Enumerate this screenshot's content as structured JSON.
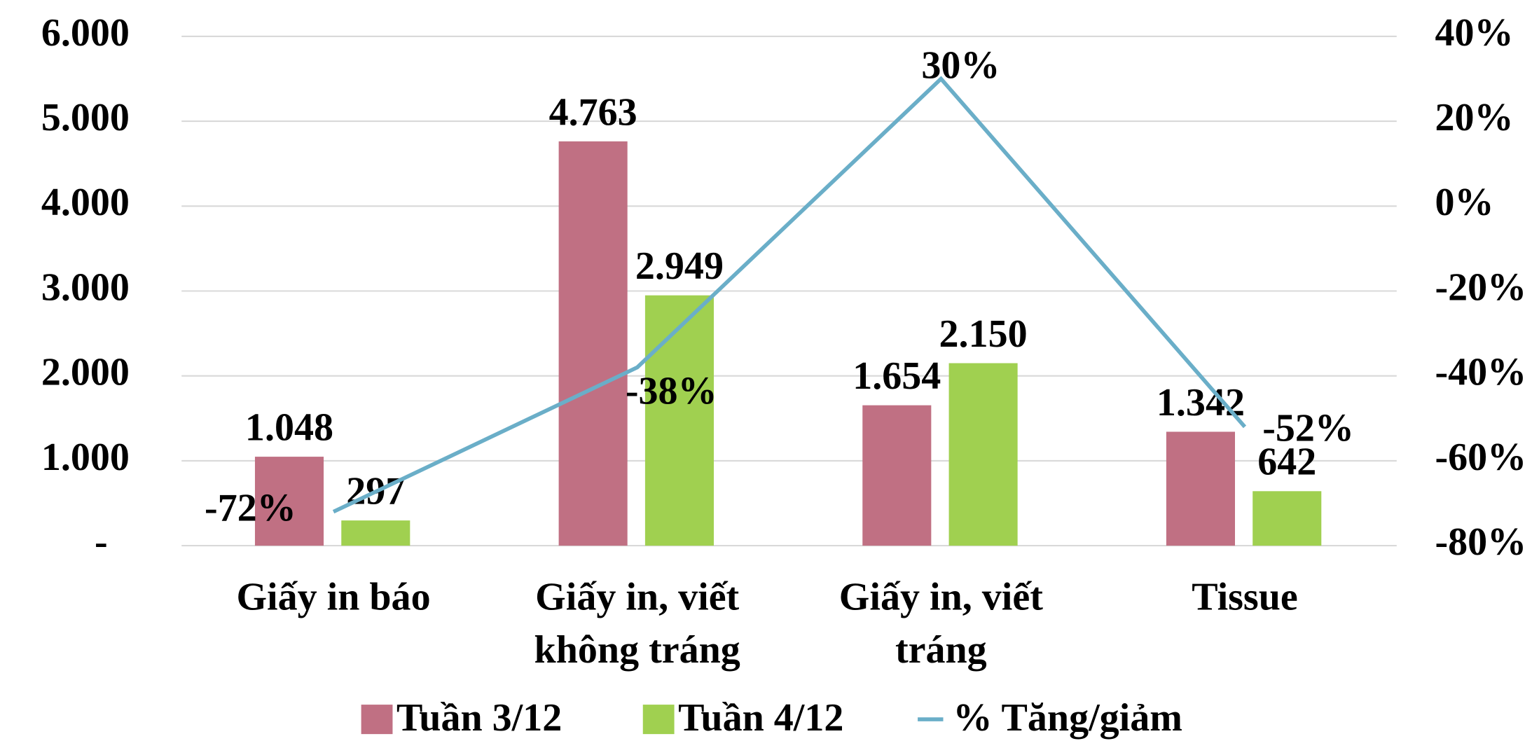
{
  "chart_data": {
    "type": "bar-line",
    "categories": [
      [
        "Giấy in báo"
      ],
      [
        "Giấy in, viết",
        "không tráng"
      ],
      [
        "Giấy in, viết",
        "tráng"
      ],
      [
        "Tissue"
      ]
    ],
    "series": [
      {
        "name": "Tuần 3/12",
        "color": "#c07083",
        "values": [
          1048,
          4763,
          1654,
          1342
        ],
        "value_labels": [
          "1.048",
          "4.763",
          "1.654",
          "1.342"
        ]
      },
      {
        "name": "Tuần 4/12",
        "color": "#a0d050",
        "values": [
          297,
          2949,
          2150,
          642
        ],
        "value_labels": [
          "297",
          "2.949",
          "2.150",
          "642"
        ]
      },
      {
        "name": "% Tăng/giảm",
        "color": "#6aaec8",
        "type": "line",
        "axis": "y2",
        "values": [
          -72,
          -38,
          30,
          -52
        ],
        "value_labels": [
          "-72%",
          "-38%",
          "30%",
          "-52%"
        ]
      }
    ],
    "ylim": [
      0,
      6000
    ],
    "yticks": [
      {
        "value": 0,
        "label": "-"
      },
      {
        "value": 1000,
        "label": "1.000"
      },
      {
        "value": 2000,
        "label": "2.000"
      },
      {
        "value": 3000,
        "label": "3.000"
      },
      {
        "value": 4000,
        "label": "4.000"
      },
      {
        "value": 5000,
        "label": "5.000"
      },
      {
        "value": 6000,
        "label": "6.000"
      }
    ],
    "y2lim": [
      -80,
      40
    ],
    "y2ticks": [
      {
        "value": -80,
        "label": "-80%"
      },
      {
        "value": -60,
        "label": "-60%"
      },
      {
        "value": -40,
        "label": "-40%"
      },
      {
        "value": -20,
        "label": "-20%"
      },
      {
        "value": 0,
        "label": "0%"
      },
      {
        "value": 20,
        "label": "20%"
      },
      {
        "value": 40,
        "label": "40%"
      }
    ],
    "grid": true,
    "legend": "bottom"
  }
}
